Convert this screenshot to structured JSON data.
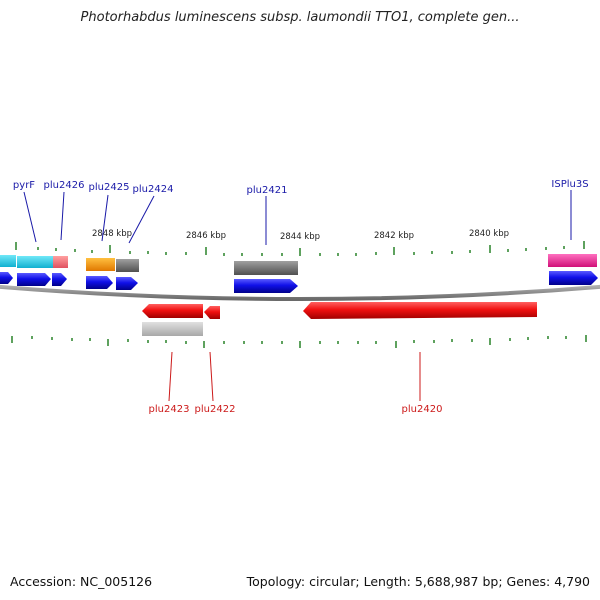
{
  "header": {
    "title": "Photorhabdus luminescens subsp. laumondii TTO1, complete gen..."
  },
  "footer": {
    "accession": "Accession: NC_005126",
    "topology": "Topology: circular; Length: 5,688,987 bp; Genes: 4,790"
  },
  "colors": {
    "backbone": "#888888",
    "tick": "#1a7a1a",
    "top_label": "#1a1aa8",
    "bottom_label": "#cc1a1a",
    "gene_blue": "#1010e0",
    "gene_red": "#ee1010"
  },
  "scale": {
    "labels": [
      "2848 kbp",
      "2846 kbp",
      "2844 kbp",
      "2842 kbp",
      "2840 kbp"
    ]
  },
  "genes_top": [
    {
      "name": "pyrF"
    },
    {
      "name": "plu2426"
    },
    {
      "name": "plu2425"
    },
    {
      "name": "plu2424"
    },
    {
      "name": "plu2421"
    },
    {
      "name": "ISPlu3S"
    }
  ],
  "genes_bottom": [
    {
      "name": "plu2423"
    },
    {
      "name": "plu2422"
    },
    {
      "name": "plu2420"
    }
  ]
}
